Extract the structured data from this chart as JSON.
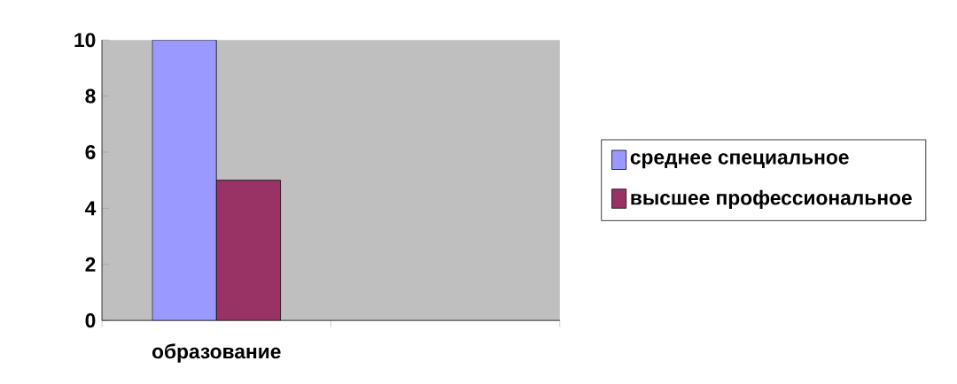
{
  "chart_data": {
    "type": "bar",
    "categories": [
      "образование",
      null
    ],
    "series": [
      {
        "name": "среднее специальное",
        "color": "#9999ff",
        "values": [
          10,
          null
        ]
      },
      {
        "name": "высшее профессиональное",
        "color": "#993366",
        "values": [
          5,
          null
        ]
      }
    ],
    "ylim": [
      0,
      10
    ],
    "yticks": [
      0,
      2,
      4,
      6,
      8,
      10
    ],
    "grid": false,
    "legend": "right"
  }
}
